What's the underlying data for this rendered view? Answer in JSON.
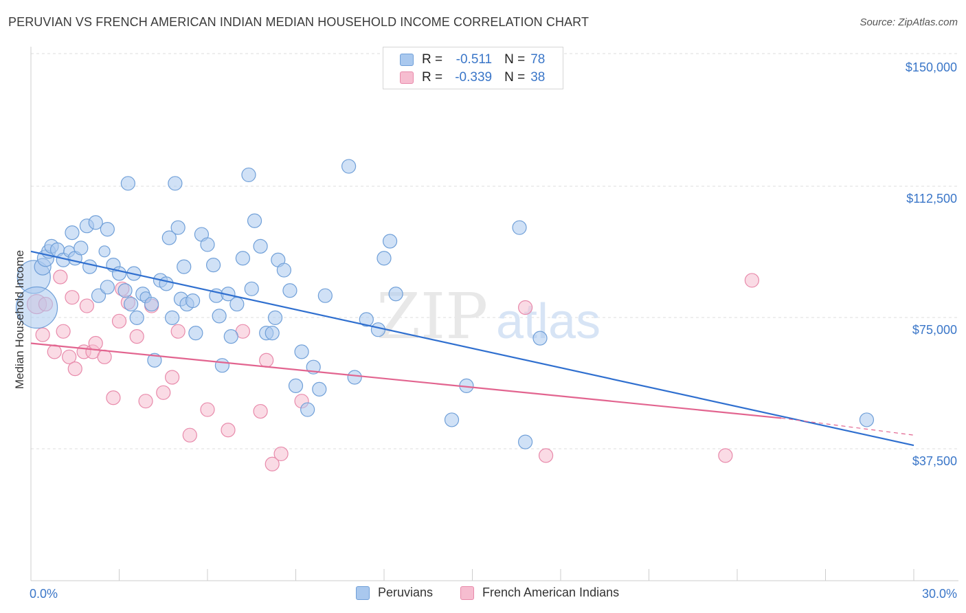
{
  "title": "PERUVIAN VS FRENCH AMERICAN INDIAN MEDIAN HOUSEHOLD INCOME CORRELATION CHART",
  "source": "Source: ZipAtlas.com",
  "watermark": {
    "zip": "ZIP",
    "atlas": "atlas"
  },
  "legend": {
    "rows": [
      {
        "r_label": "R =",
        "r_value": "-0.511",
        "n_label": "N =",
        "n_value": "78"
      },
      {
        "r_label": "R =",
        "r_value": "-0.339",
        "n_label": "N =",
        "n_value": "38"
      }
    ]
  },
  "colors": {
    "blue_fill": "#a9c8ee",
    "blue_stroke": "#6f9fd8",
    "blue_line": "#2f6fcf",
    "pink_fill": "#f6bdd0",
    "pink_stroke": "#e889aa",
    "pink_line": "#e2648f",
    "grid": "#dddddd",
    "tick_text": "#3a76c8"
  },
  "chart_data": {
    "type": "scatter",
    "title": "PERUVIAN VS FRENCH AMERICAN INDIAN MEDIAN HOUSEHOLD INCOME CORRELATION CHART",
    "xlabel": "",
    "ylabel": "Median Household Income",
    "xlim": [
      0,
      30
    ],
    "ylim": [
      0,
      155000
    ],
    "x_tick_labels": [
      "0.0%",
      "30.0%"
    ],
    "y_ticks": [
      37500,
      75000,
      112500,
      150000
    ],
    "y_tick_labels": [
      "$37,500",
      "$75,000",
      "$112,500",
      "$150,000"
    ],
    "grid": true,
    "legend_position": "top-center",
    "series": [
      {
        "name": "Peruvians",
        "color": "#6f9fd8",
        "r": -0.511,
        "n": 78,
        "trend": {
          "x": [
            0,
            30
          ],
          "y": [
            95500,
            38500
          ]
        },
        "points": [
          [
            0.1,
            88000,
            24
          ],
          [
            0.2,
            79000,
            30
          ],
          [
            0.4,
            91000,
            12
          ],
          [
            0.5,
            93500,
            12
          ],
          [
            0.6,
            95500,
            10
          ],
          [
            0.7,
            97000,
            10
          ],
          [
            0.9,
            96000,
            10
          ],
          [
            1.1,
            93000,
            10
          ],
          [
            1.3,
            95500,
            8
          ],
          [
            1.4,
            101000,
            10
          ],
          [
            1.5,
            93500,
            10
          ],
          [
            1.7,
            96500,
            10
          ],
          [
            1.9,
            103000,
            10
          ],
          [
            2.0,
            91000,
            10
          ],
          [
            2.2,
            104000,
            10
          ],
          [
            2.3,
            82500,
            10
          ],
          [
            2.5,
            95500,
            8
          ],
          [
            2.6,
            102000,
            10
          ],
          [
            2.6,
            85000,
            10
          ],
          [
            2.8,
            91500,
            10
          ],
          [
            3.0,
            89000,
            10
          ],
          [
            3.2,
            84000,
            10
          ],
          [
            3.3,
            115500,
            10
          ],
          [
            3.4,
            80000,
            10
          ],
          [
            3.5,
            89000,
            10
          ],
          [
            3.6,
            76000,
            10
          ],
          [
            3.8,
            83000,
            10
          ],
          [
            3.9,
            82000,
            8
          ],
          [
            4.1,
            80000,
            10
          ],
          [
            4.2,
            63500,
            10
          ],
          [
            4.4,
            87000,
            10
          ],
          [
            4.6,
            86000,
            10
          ],
          [
            4.7,
            99500,
            10
          ],
          [
            4.8,
            76000,
            10
          ],
          [
            4.9,
            115500,
            10
          ],
          [
            5.0,
            102500,
            10
          ],
          [
            5.1,
            81500,
            10
          ],
          [
            5.2,
            91000,
            10
          ],
          [
            5.3,
            80000,
            10
          ],
          [
            5.5,
            81000,
            10
          ],
          [
            5.6,
            71500,
            10
          ],
          [
            5.8,
            100500,
            10
          ],
          [
            6.0,
            97500,
            10
          ],
          [
            6.2,
            91500,
            10
          ],
          [
            6.3,
            82500,
            10
          ],
          [
            6.4,
            76500,
            10
          ],
          [
            6.5,
            62000,
            10
          ],
          [
            6.7,
            83000,
            10
          ],
          [
            6.8,
            70500,
            10
          ],
          [
            7.0,
            80000,
            10
          ],
          [
            7.2,
            93500,
            10
          ],
          [
            7.4,
            118000,
            10
          ],
          [
            7.5,
            84500,
            10
          ],
          [
            7.6,
            104500,
            10
          ],
          [
            7.8,
            97000,
            10
          ],
          [
            8.0,
            71500,
            10
          ],
          [
            8.2,
            71500,
            10
          ],
          [
            8.3,
            76000,
            10
          ],
          [
            8.4,
            93000,
            10
          ],
          [
            8.6,
            90000,
            10
          ],
          [
            8.8,
            84000,
            10
          ],
          [
            9.0,
            56000,
            10
          ],
          [
            9.2,
            66000,
            10
          ],
          [
            9.4,
            49000,
            10
          ],
          [
            9.6,
            61500,
            10
          ],
          [
            9.8,
            55000,
            10
          ],
          [
            10.0,
            82500,
            10
          ],
          [
            10.8,
            120500,
            10
          ],
          [
            11.0,
            58500,
            10
          ],
          [
            11.4,
            75500,
            10
          ],
          [
            11.8,
            72500,
            10
          ],
          [
            12.0,
            93500,
            10
          ],
          [
            12.2,
            98500,
            10
          ],
          [
            12.4,
            83000,
            10
          ],
          [
            14.3,
            46000,
            10
          ],
          [
            14.8,
            56000,
            10
          ],
          [
            16.6,
            102500,
            10
          ],
          [
            17.3,
            70000,
            10
          ],
          [
            16.8,
            39500,
            10
          ],
          [
            28.4,
            46000,
            10
          ]
        ]
      },
      {
        "name": "French American Indians",
        "color": "#e889aa",
        "r": -0.339,
        "n": 38,
        "trend": {
          "x": [
            0,
            25.5
          ],
          "y": [
            68500,
            46500
          ]
        },
        "trend_dashed": {
          "x": [
            25.5,
            30
          ],
          "y": [
            46500,
            41500
          ]
        },
        "points": [
          [
            0.2,
            80000,
            14
          ],
          [
            0.4,
            71000,
            10
          ],
          [
            0.5,
            80000,
            10
          ],
          [
            0.8,
            66000,
            10
          ],
          [
            1.0,
            88000,
            10
          ],
          [
            1.1,
            72000,
            10
          ],
          [
            1.3,
            64500,
            10
          ],
          [
            1.4,
            82000,
            10
          ],
          [
            1.5,
            61000,
            10
          ],
          [
            1.8,
            66000,
            10
          ],
          [
            1.9,
            79500,
            10
          ],
          [
            2.1,
            66000,
            10
          ],
          [
            2.2,
            68500,
            10
          ],
          [
            2.5,
            64500,
            10
          ],
          [
            2.8,
            52500,
            10
          ],
          [
            3.0,
            75000,
            10
          ],
          [
            3.1,
            84500,
            10
          ],
          [
            3.3,
            80500,
            10
          ],
          [
            3.6,
            70500,
            10
          ],
          [
            3.9,
            51500,
            10
          ],
          [
            4.1,
            79500,
            10
          ],
          [
            4.5,
            54000,
            10
          ],
          [
            4.8,
            58500,
            10
          ],
          [
            5.0,
            72000,
            10
          ],
          [
            5.4,
            41500,
            10
          ],
          [
            6.0,
            49000,
            10
          ],
          [
            6.7,
            43000,
            10
          ],
          [
            7.2,
            72000,
            10
          ],
          [
            7.8,
            48500,
            10
          ],
          [
            8.0,
            63500,
            10
          ],
          [
            8.2,
            33000,
            10
          ],
          [
            8.5,
            36000,
            10
          ],
          [
            9.2,
            51500,
            10
          ],
          [
            16.8,
            79000,
            10
          ],
          [
            17.5,
            35500,
            10
          ],
          [
            23.6,
            35500,
            10
          ],
          [
            24.5,
            87000,
            10
          ]
        ]
      }
    ]
  },
  "bottom_legend": [
    {
      "label": "Peruvians"
    },
    {
      "label": "French American Indians"
    }
  ]
}
